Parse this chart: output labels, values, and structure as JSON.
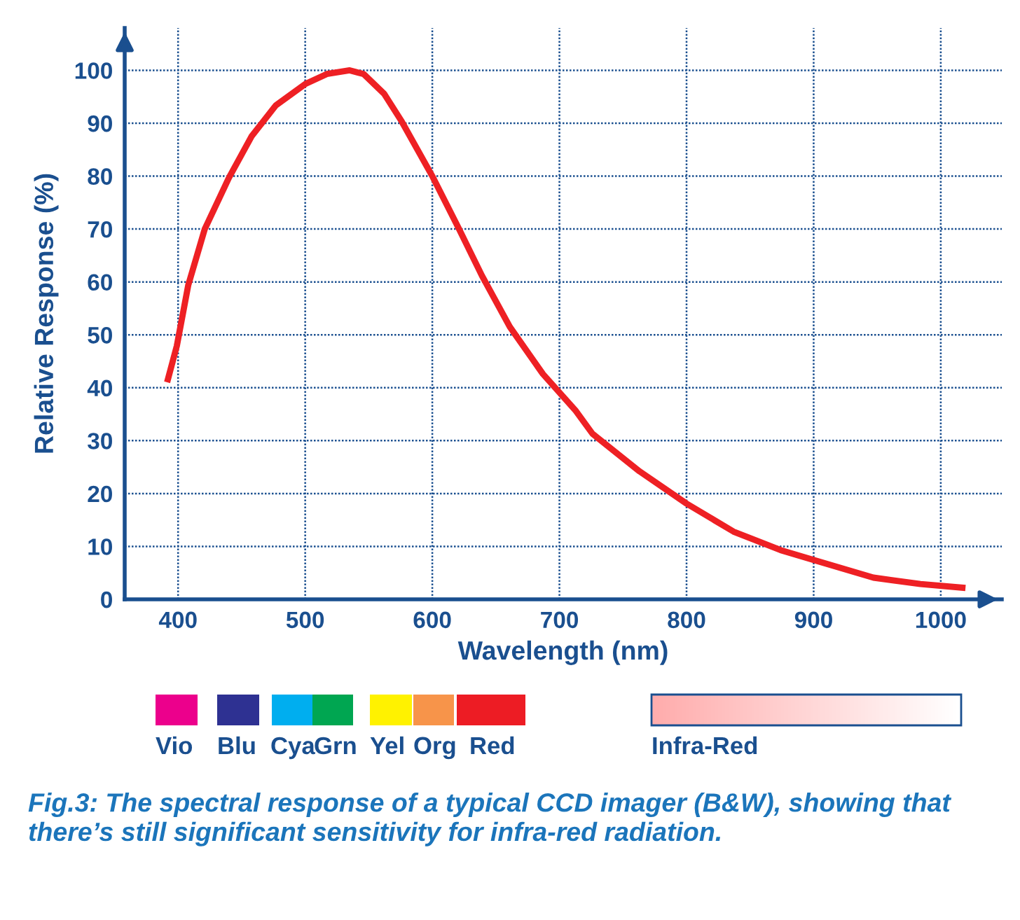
{
  "chart_data": {
    "type": "line",
    "xlabel": "Wavelength (nm)",
    "ylabel": "Relative Response (%)",
    "series": [
      {
        "color": "#ee2024",
        "x": [
          392,
          399,
          408,
          421,
          440,
          458,
          477,
          500,
          517,
          535,
          546,
          562,
          576,
          600,
          621,
          639,
          661,
          687,
          713,
          726,
          763,
          800,
          837,
          874,
          899,
          947,
          984,
          1017
        ],
        "values": [
          41.6,
          47.9,
          59.4,
          70,
          79.7,
          87.6,
          93.4,
          97.4,
          99.3,
          100,
          99.3,
          95.6,
          90.3,
          80,
          70,
          61.2,
          51.5,
          42.6,
          35.6,
          31.3,
          24.2,
          18.1,
          12.8,
          9.3,
          7.5,
          4.1,
          2.9,
          2.2
        ]
      }
    ],
    "xlim": [
      358,
      1048
    ],
    "ylim": [
      0,
      108
    ],
    "xticks": [
      400,
      500,
      600,
      700,
      800,
      900,
      1000
    ],
    "yticks": [
      0,
      10,
      20,
      30,
      40,
      50,
      60,
      70,
      80,
      90,
      100
    ],
    "grid": true,
    "marker": "none",
    "line_style": "solid",
    "legend": false,
    "annotations": [
      "Vio",
      "Blu",
      "Cya",
      "Grn",
      "Yel",
      "Org",
      "Red",
      "Infra-Red",
      "Fig.3: The spectral response of a typical CCD imager (B&W), showing that there’s still significant sensitivity for infra-red radiation."
    ]
  }
}
